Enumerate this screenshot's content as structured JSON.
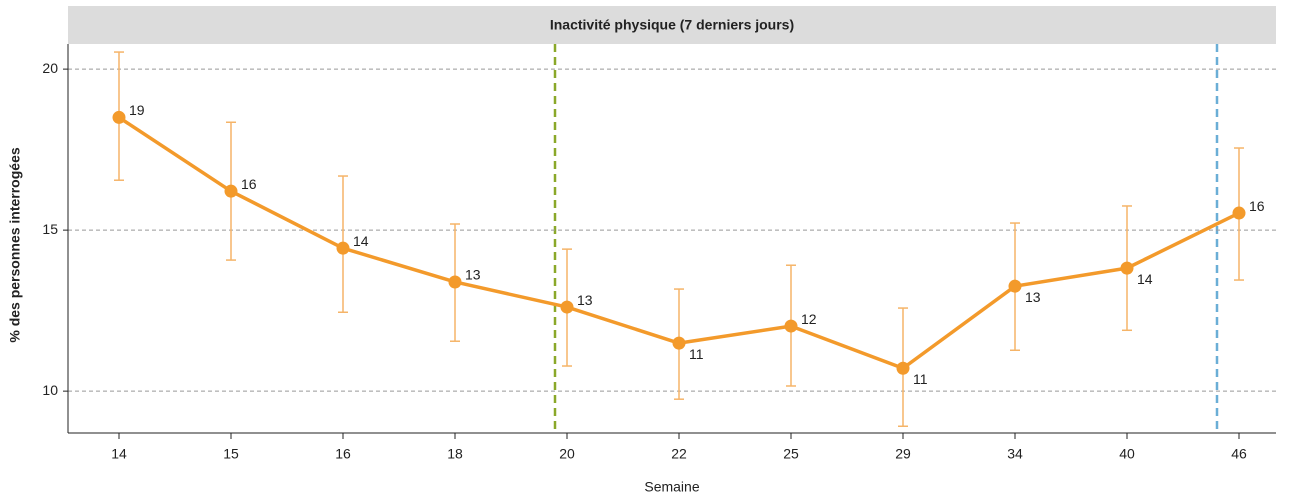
{
  "chart_data": {
    "type": "line",
    "title": "Inactivité physique (7 derniers jours)",
    "x_label": "Semaine",
    "y_label": "% des personnes interrogées",
    "categories": [
      "14",
      "15",
      "16",
      "18",
      "20",
      "22",
      "25",
      "29",
      "34",
      "40",
      "46"
    ],
    "series": [
      {
        "name": "Inactivité physique",
        "color": "#f39a2b",
        "error_color": "#f5b468",
        "values": [
          18.5,
          16.21,
          14.44,
          13.39,
          12.61,
          11.49,
          12.02,
          10.71,
          13.26,
          13.82,
          15.53
        ],
        "lower": [
          16.55,
          14.07,
          12.45,
          11.55,
          10.78,
          9.75,
          10.16,
          8.91,
          11.27,
          11.89,
          13.45
        ],
        "upper": [
          20.53,
          18.35,
          16.68,
          15.19,
          14.41,
          13.17,
          13.91,
          12.58,
          15.22,
          15.75,
          17.55
        ],
        "value_labels": [
          "19",
          "16",
          "14",
          "13",
          "13",
          "11",
          "12",
          "11",
          "13",
          "14",
          "16"
        ]
      }
    ],
    "ylim": [
      8.7,
      20.78
    ],
    "yticks": [
      10,
      15,
      20
    ],
    "grid": true
  }
}
